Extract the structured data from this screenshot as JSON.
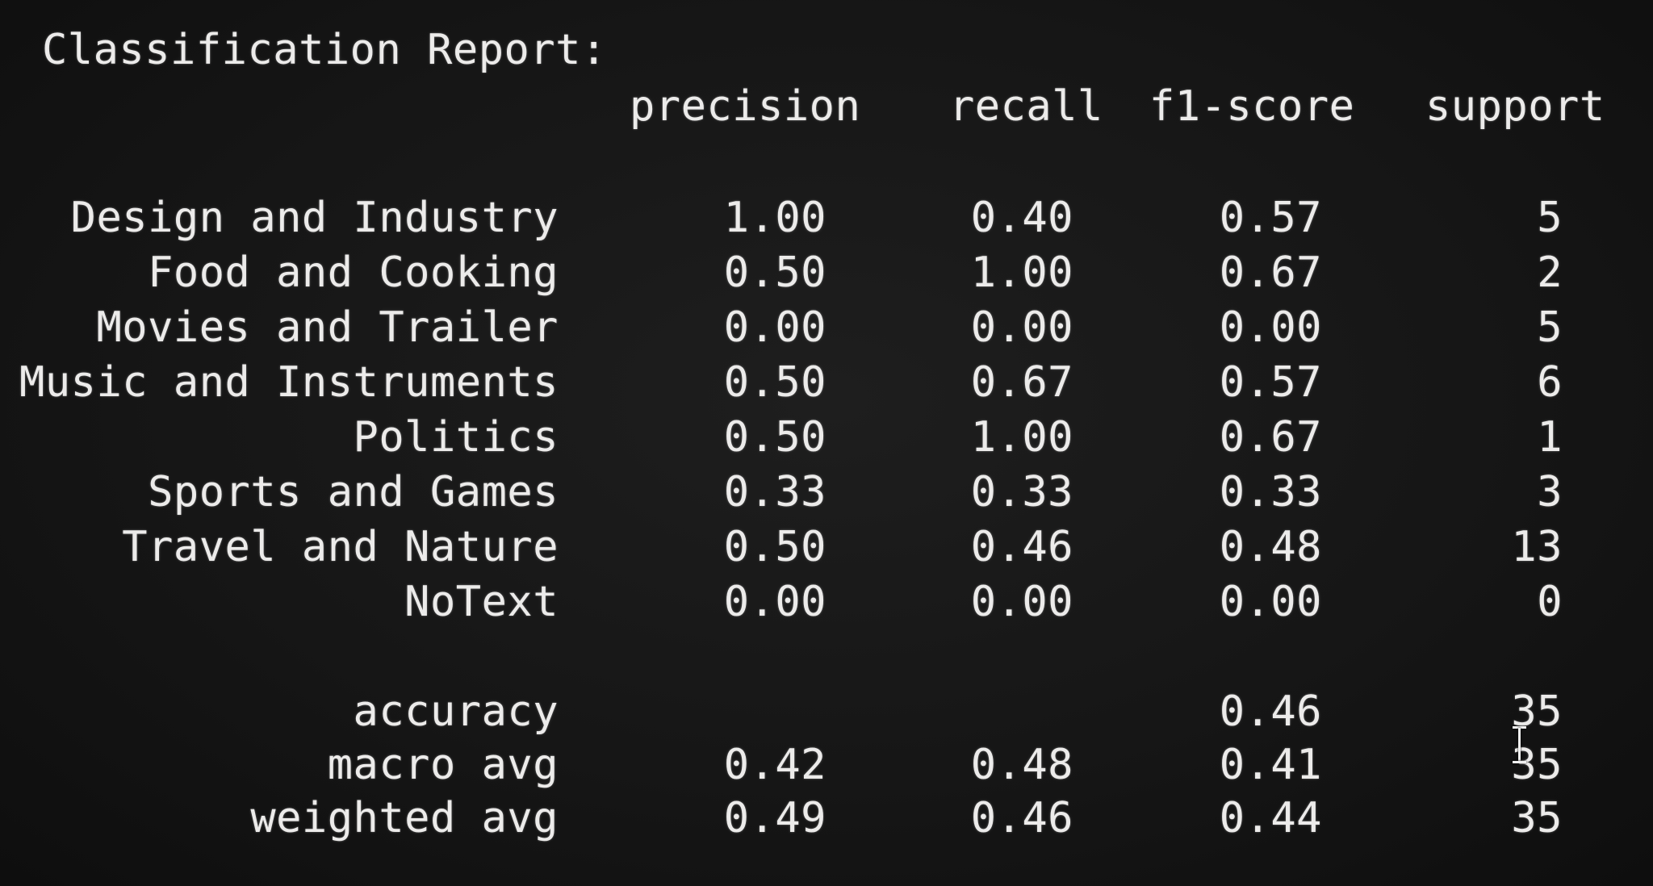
{
  "report": {
    "title": "Classification Report:",
    "headers": {
      "precision": "precision",
      "recall": "recall",
      "f1": "f1-score",
      "support": "support"
    },
    "rows": [
      {
        "label": "Design and Industry",
        "precision": "1.00",
        "recall": "0.40",
        "f1": "0.57",
        "support": "5"
      },
      {
        "label": "Food and Cooking",
        "precision": "0.50",
        "recall": "1.00",
        "f1": "0.67",
        "support": "2"
      },
      {
        "label": "Movies and Trailer",
        "precision": "0.00",
        "recall": "0.00",
        "f1": "0.00",
        "support": "5"
      },
      {
        "label": "Music and Instruments",
        "precision": "0.50",
        "recall": "0.67",
        "f1": "0.57",
        "support": "6"
      },
      {
        "label": "Politics",
        "precision": "0.50",
        "recall": "1.00",
        "f1": "0.67",
        "support": "1"
      },
      {
        "label": "Sports and Games",
        "precision": "0.33",
        "recall": "0.33",
        "f1": "0.33",
        "support": "3"
      },
      {
        "label": "Travel and Nature",
        "precision": "0.50",
        "recall": "0.46",
        "f1": "0.48",
        "support": "13"
      },
      {
        "label": "NoText",
        "precision": "0.00",
        "recall": "0.00",
        "f1": "0.00",
        "support": "0"
      }
    ],
    "summary": [
      {
        "label": "accuracy",
        "precision": "",
        "recall": "",
        "f1": "0.46",
        "support": "35"
      },
      {
        "label": "macro avg",
        "precision": "0.42",
        "recall": "0.48",
        "f1": "0.41",
        "support": "35"
      },
      {
        "label": "weighted avg",
        "precision": "0.49",
        "recall": "0.46",
        "f1": "0.44",
        "support": "35"
      }
    ]
  },
  "cursor": {
    "icon": "text-cursor-icon"
  },
  "colors": {
    "background": "#161616",
    "text": "#ecebea"
  }
}
